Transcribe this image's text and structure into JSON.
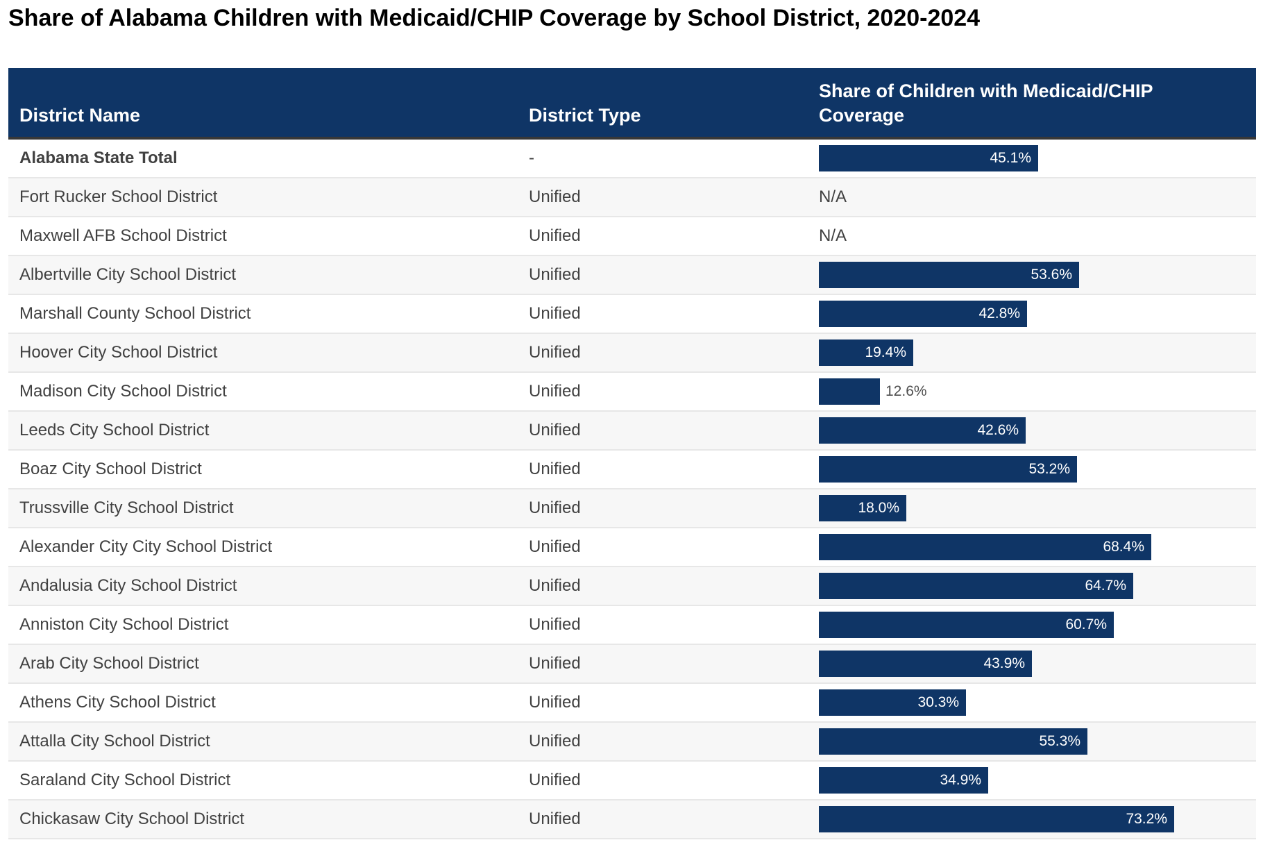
{
  "page_title": "Share of Alabama Children with Medicaid/CHIP Coverage by School District, 2020-2024",
  "colors": {
    "navy": "#0F3566",
    "header_text": "#FFFFFF",
    "header_border": "#383838",
    "row_text": "#414141",
    "stripe_bg": "#F7F7F7",
    "row_border": "#E7E7E7",
    "bar_label_inside": "#FFFFFF",
    "bar_label_outside": "#4F4F4F"
  },
  "table": {
    "columns": [
      {
        "label": "District Name"
      },
      {
        "label": "District Type"
      },
      {
        "label": "Share of Children with Medicaid/CHIP Coverage"
      }
    ],
    "rows": [
      {
        "name": "Alabama State Total",
        "type": "-",
        "value": 45.1,
        "label": "45.1%",
        "bold": true,
        "label_inside": true
      },
      {
        "name": "Fort Rucker School District",
        "type": "Unified",
        "value": null,
        "label": "N/A",
        "bold": false,
        "label_inside": false
      },
      {
        "name": "Maxwell AFB School District",
        "type": "Unified",
        "value": null,
        "label": "N/A",
        "bold": false,
        "label_inside": false
      },
      {
        "name": "Albertville City School District",
        "type": "Unified",
        "value": 53.6,
        "label": "53.6%",
        "bold": false,
        "label_inside": true
      },
      {
        "name": "Marshall County School District",
        "type": "Unified",
        "value": 42.8,
        "label": "42.8%",
        "bold": false,
        "label_inside": true
      },
      {
        "name": "Hoover City School District",
        "type": "Unified",
        "value": 19.4,
        "label": "19.4%",
        "bold": false,
        "label_inside": true
      },
      {
        "name": "Madison City School District",
        "type": "Unified",
        "value": 12.6,
        "label": "12.6%",
        "bold": false,
        "label_inside": false
      },
      {
        "name": "Leeds City School District",
        "type": "Unified",
        "value": 42.6,
        "label": "42.6%",
        "bold": false,
        "label_inside": true
      },
      {
        "name": "Boaz City School District",
        "type": "Unified",
        "value": 53.2,
        "label": "53.2%",
        "bold": false,
        "label_inside": true
      },
      {
        "name": "Trussville City School District",
        "type": "Unified",
        "value": 18.0,
        "label": "18.0%",
        "bold": false,
        "label_inside": true
      },
      {
        "name": "Alexander City City School District",
        "type": "Unified",
        "value": 68.4,
        "label": "68.4%",
        "bold": false,
        "label_inside": true
      },
      {
        "name": "Andalusia City School District",
        "type": "Unified",
        "value": 64.7,
        "label": "64.7%",
        "bold": false,
        "label_inside": true
      },
      {
        "name": "Anniston City School District",
        "type": "Unified",
        "value": 60.7,
        "label": "60.7%",
        "bold": false,
        "label_inside": true
      },
      {
        "name": "Arab City School District",
        "type": "Unified",
        "value": 43.9,
        "label": "43.9%",
        "bold": false,
        "label_inside": true
      },
      {
        "name": "Athens City School District",
        "type": "Unified",
        "value": 30.3,
        "label": "30.3%",
        "bold": false,
        "label_inside": true
      },
      {
        "name": "Attalla City School District",
        "type": "Unified",
        "value": 55.3,
        "label": "55.3%",
        "bold": false,
        "label_inside": true
      },
      {
        "name": "Saraland City School District",
        "type": "Unified",
        "value": 34.9,
        "label": "34.9%",
        "bold": false,
        "label_inside": true
      },
      {
        "name": "Chickasaw City School District",
        "type": "Unified",
        "value": 73.2,
        "label": "73.2%",
        "bold": false,
        "label_inside": true
      }
    ]
  },
  "chart_data": {
    "type": "bar",
    "orientation": "horizontal",
    "title": "Share of Alabama Children with Medicaid/CHIP Coverage by School District, 2020-2024",
    "categories": [
      "Alabama State Total",
      "Fort Rucker School District",
      "Maxwell AFB School District",
      "Albertville City School District",
      "Marshall County School District",
      "Hoover City School District",
      "Madison City School District",
      "Leeds City School District",
      "Boaz City School District",
      "Trussville City School District",
      "Alexander City City School District",
      "Andalusia City School District",
      "Anniston City School District",
      "Arab City School District",
      "Athens City School District",
      "Attalla City School District",
      "Saraland City School District",
      "Chickasaw City School District"
    ],
    "district_types": [
      "-",
      "Unified",
      "Unified",
      "Unified",
      "Unified",
      "Unified",
      "Unified",
      "Unified",
      "Unified",
      "Unified",
      "Unified",
      "Unified",
      "Unified",
      "Unified",
      "Unified",
      "Unified",
      "Unified",
      "Unified"
    ],
    "values": [
      45.1,
      null,
      null,
      53.6,
      42.8,
      19.4,
      12.6,
      42.6,
      53.2,
      18.0,
      68.4,
      64.7,
      60.7,
      43.9,
      30.3,
      55.3,
      34.9,
      73.2
    ],
    "value_labels": [
      "45.1%",
      "N/A",
      "N/A",
      "53.6%",
      "42.8%",
      "19.4%",
      "12.6%",
      "42.6%",
      "53.2%",
      "18.0%",
      "68.4%",
      "64.7%",
      "60.7%",
      "43.9%",
      "30.3%",
      "55.3%",
      "34.9%",
      "73.2%"
    ],
    "xlabel": "Share of Children with Medicaid/CHIP Coverage",
    "ylabel": "District Name",
    "xlim": [
      0,
      100
    ],
    "bar_color": "#0F3566",
    "grid": false,
    "legend": "none"
  }
}
